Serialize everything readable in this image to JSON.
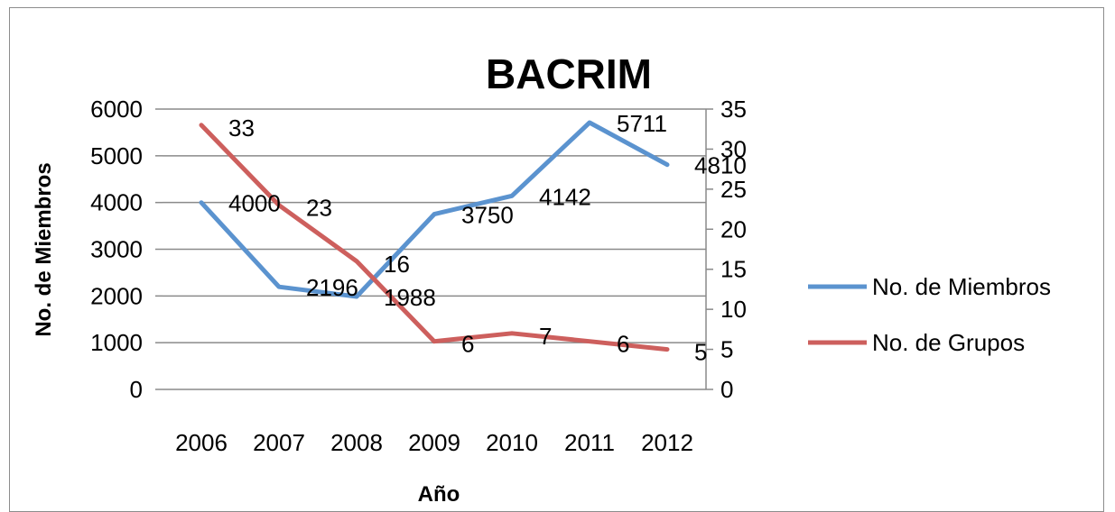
{
  "chart_data": {
    "type": "line",
    "title": "BACRIM",
    "xlabel": "Año",
    "ylabel": "No. de Miembros",
    "categories": [
      "2006",
      "2007",
      "2008",
      "2009",
      "2010",
      "2011",
      "2012"
    ],
    "ylim": [
      0,
      6000
    ],
    "yticks": [
      "0",
      "1000",
      "2000",
      "3000",
      "4000",
      "5000",
      "6000"
    ],
    "y2lim": [
      0,
      35
    ],
    "y2ticks": [
      "0",
      "5",
      "10",
      "15",
      "20",
      "25",
      "30",
      "35"
    ],
    "grid": true,
    "legend_position": "right",
    "series": [
      {
        "name": "No. de Miembros",
        "axis": "left",
        "color": "#5b93cf",
        "values": [
          4000,
          2196,
          1988,
          3750,
          4142,
          5711,
          4810
        ],
        "labels": [
          "4000",
          "2196",
          "1988",
          "3750",
          "4142",
          "5711",
          "4810"
        ]
      },
      {
        "name": "No. de Grupos",
        "axis": "right",
        "color": "#cd5f5d",
        "values": [
          33,
          23,
          16,
          6,
          7,
          6,
          5
        ],
        "labels": [
          "33",
          "23",
          "16",
          "6",
          "7",
          "6",
          "5"
        ]
      }
    ]
  }
}
